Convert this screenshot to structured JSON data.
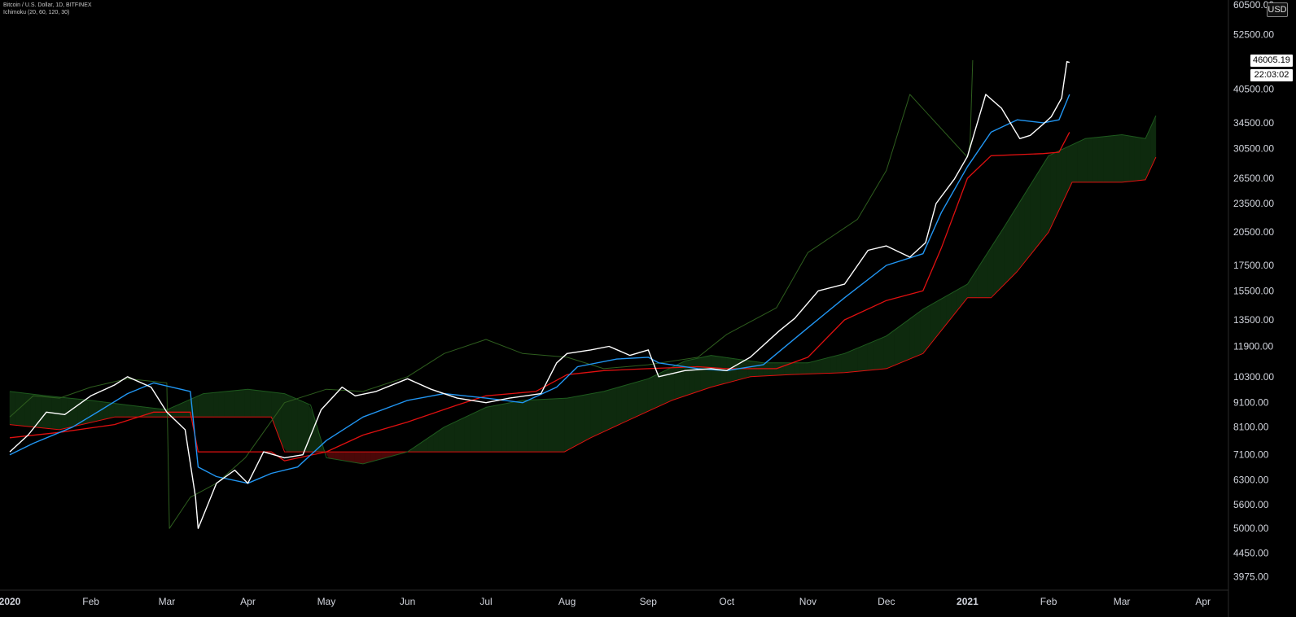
{
  "header": {
    "symbol_line": "Bitcoin / U.S. Dollar, 1D, BITFINEX",
    "indicator_line": "Ichimoku (20, 60, 120, 30)"
  },
  "currency_badge": "USD",
  "last_price_label": "46005.19",
  "countdown_label": "22:03:02",
  "colors": {
    "background": "#000000",
    "price": "#ffffff",
    "conversion": "#2196f3",
    "base": "#e01010",
    "lagging": "#2e5e1e",
    "cloud_bull": "#0e2a0e",
    "cloud_bear": "#4a0808",
    "axis_text": "#d1d4dc"
  },
  "chart_data": {
    "type": "line",
    "title": "",
    "xlabel": "",
    "ylabel": "",
    "y_scale": "log",
    "ylim": [
      3800,
      60500
    ],
    "xlim": [
      "2020-01-01",
      "2021-04-07"
    ],
    "x_tick_labels": [
      "2020",
      "Feb",
      "Mar",
      "Apr",
      "May",
      "Jun",
      "Jul",
      "Aug",
      "Sep",
      "Oct",
      "Nov",
      "Dec",
      "2021",
      "Feb",
      "Mar",
      "Apr"
    ],
    "x_tick_dates": [
      "2020-01-01",
      "2020-02-01",
      "2020-03-01",
      "2020-04-01",
      "2020-05-01",
      "2020-06-01",
      "2020-07-01",
      "2020-08-01",
      "2020-09-01",
      "2020-10-01",
      "2020-11-01",
      "2020-12-01",
      "2021-01-01",
      "2021-02-01",
      "2021-03-01",
      "2021-04-01"
    ],
    "y_tick_labels": [
      "60500.00",
      "52500.00",
      "40500.00",
      "34500.00",
      "30500.00",
      "26500.00",
      "23500.00",
      "20500.00",
      "17500.00",
      "15500.00",
      "13500.00",
      "11900.00",
      "10300.00",
      "9100.00",
      "8100.00",
      "7100.00",
      "6300.00",
      "5600.00",
      "5000.00",
      "4450.00",
      "3975.00"
    ],
    "y_tick_values": [
      60500,
      52500,
      40500,
      34500,
      30500,
      26500,
      23500,
      20500,
      17500,
      15500,
      13500,
      11900,
      10300,
      9100,
      8100,
      7100,
      6300,
      5600,
      5000,
      4450,
      3975
    ],
    "grid": false,
    "series": [
      {
        "key": "price",
        "x": [
          "2020-01-01",
          "2020-01-08",
          "2020-01-15",
          "2020-01-22",
          "2020-02-01",
          "2020-02-10",
          "2020-02-15",
          "2020-02-24",
          "2020-03-01",
          "2020-03-08",
          "2020-03-12",
          "2020-03-13",
          "2020-03-20",
          "2020-03-27",
          "2020-04-01",
          "2020-04-07",
          "2020-04-15",
          "2020-04-22",
          "2020-04-29",
          "2020-05-07",
          "2020-05-12",
          "2020-05-20",
          "2020-06-01",
          "2020-06-10",
          "2020-06-20",
          "2020-07-01",
          "2020-07-10",
          "2020-07-22",
          "2020-07-28",
          "2020-08-01",
          "2020-08-10",
          "2020-08-17",
          "2020-08-25",
          "2020-09-01",
          "2020-09-05",
          "2020-09-15",
          "2020-09-25",
          "2020-10-01",
          "2020-10-10",
          "2020-10-21",
          "2020-10-27",
          "2020-11-05",
          "2020-11-15",
          "2020-11-24",
          "2020-12-01",
          "2020-12-10",
          "2020-12-16",
          "2020-12-20",
          "2020-12-27",
          "2021-01-01",
          "2021-01-08",
          "2021-01-14",
          "2021-01-21",
          "2021-01-25",
          "2021-01-30",
          "2021-02-02",
          "2021-02-06",
          "2021-02-08",
          "2021-02-09"
        ],
        "y": [
          7200,
          7800,
          8700,
          8600,
          9400,
          9900,
          10300,
          9800,
          8700,
          8000,
          5800,
          5000,
          6200,
          6600,
          6200,
          7200,
          7000,
          7100,
          8800,
          9800,
          9400,
          9600,
          10200,
          9700,
          9300,
          9100,
          9300,
          9500,
          11000,
          11500,
          11700,
          11900,
          11400,
          11700,
          10300,
          10600,
          10700,
          10600,
          11300,
          12800,
          13600,
          15500,
          16000,
          18800,
          19200,
          18200,
          19500,
          23500,
          26400,
          29400,
          39500,
          37000,
          32000,
          32500,
          34300,
          35500,
          38800,
          46200,
          46005
        ]
      },
      {
        "key": "conversion",
        "x": [
          "2020-01-01",
          "2020-01-10",
          "2020-01-25",
          "2020-02-05",
          "2020-02-15",
          "2020-02-25",
          "2020-03-10",
          "2020-03-13",
          "2020-03-20",
          "2020-04-01",
          "2020-04-10",
          "2020-04-20",
          "2020-05-01",
          "2020-05-15",
          "2020-06-01",
          "2020-06-15",
          "2020-07-01",
          "2020-07-15",
          "2020-07-28",
          "2020-08-05",
          "2020-08-20",
          "2020-09-01",
          "2020-09-05",
          "2020-09-20",
          "2020-10-01",
          "2020-10-15",
          "2020-11-01",
          "2020-11-15",
          "2020-12-01",
          "2020-12-15",
          "2020-12-22",
          "2021-01-01",
          "2021-01-10",
          "2021-01-20",
          "2021-01-30",
          "2021-02-05",
          "2021-02-09"
        ],
        "y": [
          7100,
          7500,
          8100,
          8800,
          9500,
          10000,
          9600,
          6700,
          6400,
          6200,
          6500,
          6700,
          7600,
          8500,
          9200,
          9500,
          9300,
          9100,
          9800,
          10800,
          11200,
          11300,
          11000,
          10700,
          10600,
          10900,
          13000,
          15000,
          17500,
          18500,
          22500,
          28000,
          33000,
          35000,
          34500,
          35000,
          39500
        ]
      },
      {
        "key": "base",
        "x": [
          "2020-01-01",
          "2020-01-20",
          "2020-02-10",
          "2020-02-25",
          "2020-03-10",
          "2020-03-13",
          "2020-04-10",
          "2020-04-15",
          "2020-05-01",
          "2020-05-15",
          "2020-06-01",
          "2020-06-20",
          "2020-07-01",
          "2020-07-20",
          "2020-08-01",
          "2020-08-15",
          "2020-09-01",
          "2020-09-20",
          "2020-10-01",
          "2020-10-20",
          "2020-11-01",
          "2020-11-15",
          "2020-12-01",
          "2020-12-15",
          "2020-12-22",
          "2021-01-01",
          "2021-01-10",
          "2021-01-30",
          "2021-02-05",
          "2021-02-09"
        ],
        "y": [
          7700,
          7900,
          8200,
          8700,
          8700,
          7200,
          7200,
          6900,
          7200,
          7800,
          8300,
          9000,
          9400,
          9600,
          10400,
          10600,
          10700,
          10800,
          10700,
          10700,
          11300,
          13500,
          14800,
          15500,
          19000,
          26500,
          29500,
          29800,
          30000,
          33000
        ]
      },
      {
        "key": "lagging",
        "x": [
          "2020-01-01",
          "2020-01-10",
          "2020-01-20",
          "2020-02-01",
          "2020-02-15",
          "2020-03-01",
          "2020-03-02",
          "2020-03-10",
          "2020-03-20",
          "2020-03-31",
          "2020-04-15",
          "2020-05-01",
          "2020-05-15",
          "2020-06-01",
          "2020-06-15",
          "2020-07-01",
          "2020-07-15",
          "2020-08-01",
          "2020-08-15",
          "2020-09-01",
          "2020-09-20",
          "2020-10-01",
          "2020-10-20",
          "2020-11-01",
          "2020-11-20",
          "2020-12-01",
          "2020-12-10",
          "2021-01-01",
          "2021-01-02",
          "2021-01-03"
        ],
        "y": [
          8500,
          9400,
          9300,
          9800,
          10200,
          10000,
          5000,
          5800,
          6200,
          7000,
          9100,
          9700,
          9600,
          10300,
          11500,
          12300,
          11500,
          11300,
          10700,
          10900,
          11300,
          12600,
          14300,
          18600,
          21800,
          27500,
          39500,
          29300,
          31200,
          46500
        ]
      },
      {
        "key": "span_a",
        "x": [
          "2020-01-01",
          "2020-01-15",
          "2020-02-01",
          "2020-02-15",
          "2020-03-01",
          "2020-03-15",
          "2020-04-01",
          "2020-04-15",
          "2020-04-25",
          "2020-05-01",
          "2020-05-15",
          "2020-06-01",
          "2020-06-15",
          "2020-07-01",
          "2020-07-15",
          "2020-08-01",
          "2020-08-15",
          "2020-09-01",
          "2020-09-15",
          "2020-09-25",
          "2020-10-15",
          "2020-11-01",
          "2020-11-15",
          "2020-12-01",
          "2020-12-15",
          "2021-01-01",
          "2021-01-15",
          "2021-02-01",
          "2021-02-15",
          "2021-03-01",
          "2021-03-10",
          "2021-03-14"
        ],
        "y": [
          9600,
          9400,
          9200,
          9000,
          8800,
          9500,
          9700,
          9500,
          9000,
          7000,
          6800,
          7200,
          8100,
          8900,
          9200,
          9300,
          9600,
          10200,
          11100,
          11400,
          11000,
          11000,
          11500,
          12500,
          14200,
          16000,
          21000,
          29500,
          32000,
          32600,
          32000,
          35700
        ]
      },
      {
        "key": "span_b",
        "x": [
          "2020-01-01",
          "2020-01-20",
          "2020-02-10",
          "2020-03-01",
          "2020-03-20",
          "2020-04-10",
          "2020-04-15",
          "2020-05-01",
          "2020-05-15",
          "2020-06-01",
          "2020-06-20",
          "2020-07-10",
          "2020-07-31",
          "2020-08-10",
          "2020-08-25",
          "2020-09-10",
          "2020-09-25",
          "2020-10-10",
          "2020-10-25",
          "2020-11-15",
          "2020-12-01",
          "2020-12-15",
          "2021-01-01",
          "2021-01-10",
          "2021-01-20",
          "2021-02-01",
          "2021-02-10",
          "2021-03-01",
          "2021-03-10",
          "2021-03-14"
        ],
        "y": [
          8200,
          8000,
          8500,
          8500,
          8500,
          8500,
          7200,
          7200,
          7200,
          7200,
          7200,
          7200,
          7200,
          7700,
          8400,
          9200,
          9800,
          10300,
          10400,
          10500,
          10700,
          11500,
          15000,
          15000,
          17000,
          20500,
          26000,
          26000,
          26300,
          29300
        ]
      }
    ]
  }
}
